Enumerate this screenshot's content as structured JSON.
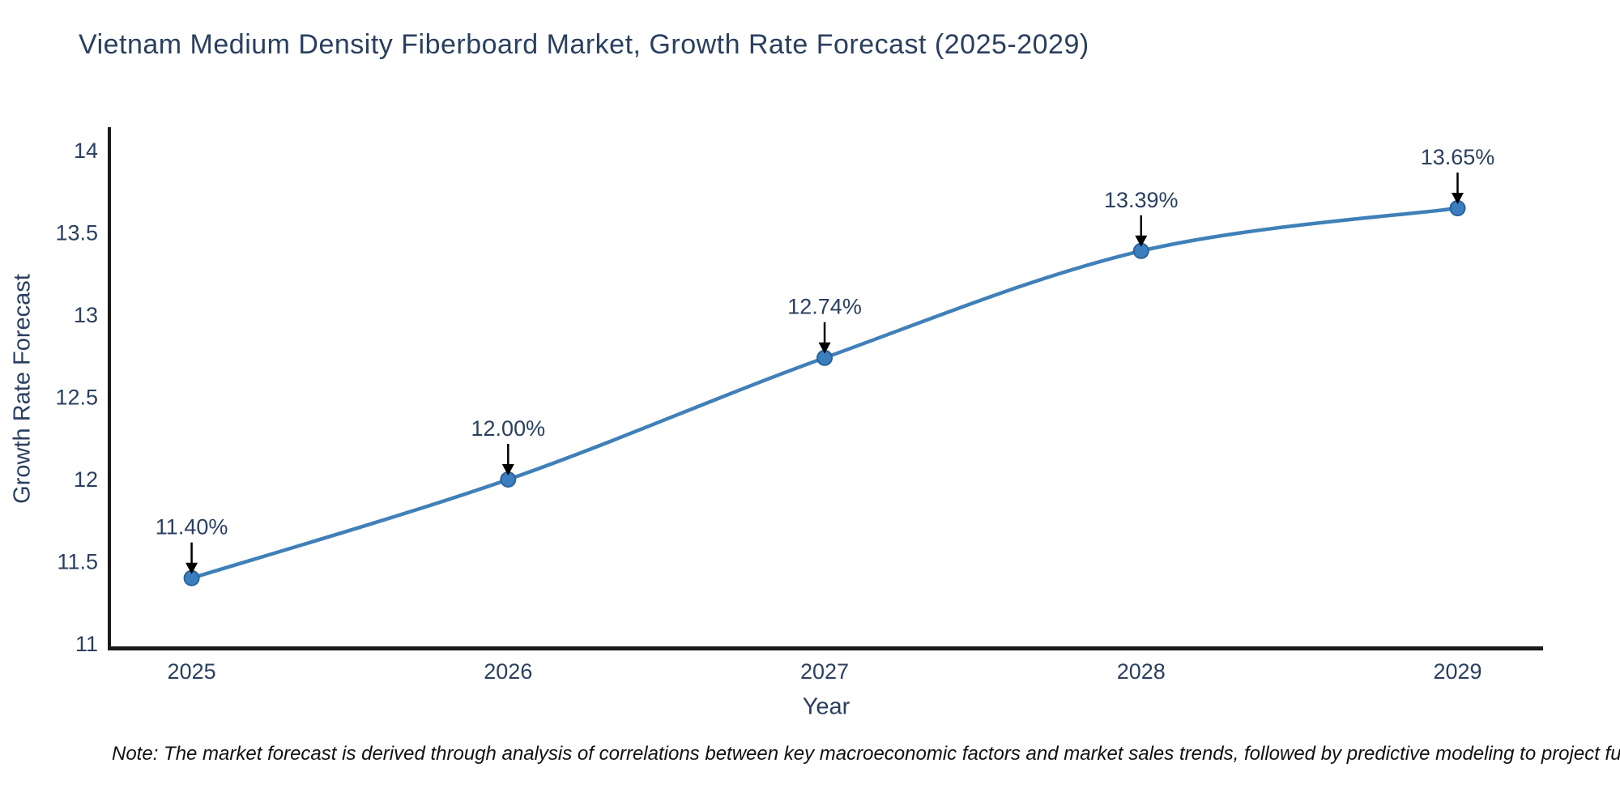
{
  "page": {
    "background": "#ffffff"
  },
  "chart_data": {
    "type": "line",
    "title": "Vietnam Medium Density Fiberboard Market, Growth Rate Forecast (2025-2029)",
    "xlabel": "Year",
    "ylabel": "Growth Rate Forecast",
    "categories": [
      2025,
      2026,
      2027,
      2028,
      2029
    ],
    "series": [
      {
        "name": "Growth Rate Forecast",
        "values": [
          11.4,
          12.0,
          12.74,
          13.39,
          13.65
        ]
      }
    ],
    "point_labels": [
      "11.40%",
      "12.00%",
      "12.74%",
      "13.39%",
      "13.65%"
    ],
    "yticks": [
      11,
      11.5,
      12,
      12.5,
      13,
      13.5,
      14
    ],
    "ytick_labels": [
      "11",
      "11.5",
      "12",
      "12.5",
      "13",
      "13.5",
      "14"
    ],
    "xtick_labels": [
      "2025",
      "2026",
      "2027",
      "2028",
      "2029"
    ],
    "ylim": [
      10.975,
      14.133
    ],
    "xlim": [
      2024.74,
      2029.27
    ],
    "line_shape": "spline",
    "grid": false,
    "legend_position": "none",
    "colors": {
      "line": "#4080b8",
      "marker_fill": "#3b7ec0",
      "marker_stroke": "#2b629a",
      "axis_line": "#1a1a1a",
      "text": "#2a3f5f",
      "annotation_arrow": "#000000"
    },
    "note": "Note: The market forecast is derived through analysis of correlations between key macroeconomic factors and market sales trends, followed by predictive modeling to project future sales."
  }
}
